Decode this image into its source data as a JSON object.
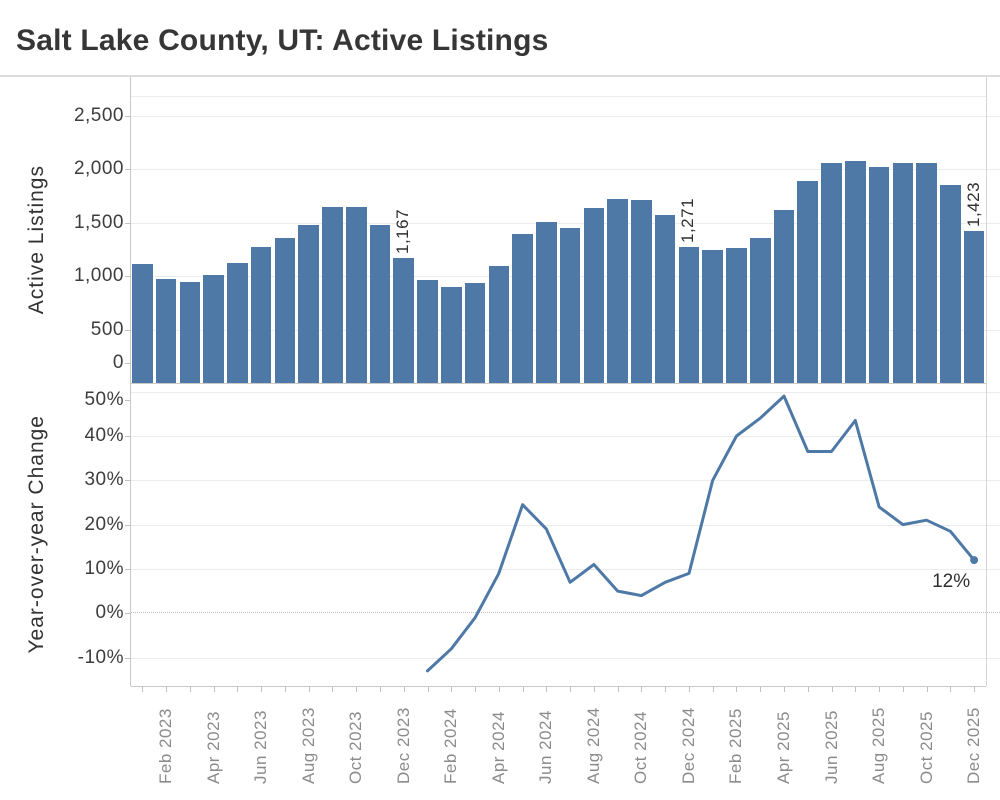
{
  "title": "Salt Lake County, UT: Active Listings",
  "colors": {
    "bar": "#4e79a7",
    "line": "#4e79a7",
    "gridline": "#ececec",
    "axis_line": "#c9c9c9",
    "month_label_text": "#8b8b8b",
    "tick_label_text": "#3d3d3d",
    "title_text": "#363636"
  },
  "x_axis": {
    "tick_labels": [
      "Feb 2023",
      "Apr 2023",
      "Jun 2023",
      "Aug 2023",
      "Oct 2023",
      "Dec 2023",
      "Feb 2024",
      "Apr 2024",
      "Jun 2024",
      "Aug 2024",
      "Oct 2024",
      "Dec 2024",
      "Feb 2025",
      "Apr 2025",
      "Jun 2025",
      "Aug 2025",
      "Oct 2025",
      "Dec 2025"
    ]
  },
  "chart_data": [
    {
      "type": "bar",
      "title": "Active Listings",
      "ylabel": "Active Listings",
      "ylim": [
        0,
        2500
      ],
      "grid": true,
      "legend": false,
      "bar_color": "#4e79a7",
      "ytick_values": [
        0,
        500,
        1000,
        1500,
        2000,
        2500
      ],
      "ytick_labels": [
        "0",
        "500",
        "1,000",
        "1,500",
        "2,000",
        "2,500"
      ],
      "categories": [
        "Jan 2023",
        "Feb 2023",
        "Mar 2023",
        "Apr 2023",
        "May 2023",
        "Jun 2023",
        "Jul 2023",
        "Aug 2023",
        "Sep 2023",
        "Oct 2023",
        "Nov 2023",
        "Dec 2023",
        "Jan 2024",
        "Feb 2024",
        "Mar 2024",
        "Apr 2024",
        "May 2024",
        "Jun 2024",
        "Jul 2024",
        "Aug 2024",
        "Sep 2024",
        "Oct 2024",
        "Nov 2024",
        "Dec 2024",
        "Jan 2025",
        "Feb 2025",
        "Mar 2025",
        "Apr 2025",
        "May 2025",
        "Jun 2025",
        "Jul 2025",
        "Aug 2025",
        "Sep 2025",
        "Oct 2025",
        "Nov 2025",
        "Dec 2025"
      ],
      "values": [
        1108,
        970,
        948,
        1011,
        1117,
        1270,
        1355,
        1474,
        1643,
        1643,
        1477,
        1167,
        964,
        901,
        936,
        1089,
        1390,
        1505,
        1449,
        1637,
        1718,
        1709,
        1568,
        1271,
        1239,
        1265,
        1359,
        1615,
        1890,
        2053,
        2078,
        2016,
        2059,
        2059,
        1850,
        1423
      ],
      "annotations": [
        {
          "category": "Dec 2023",
          "label": "1,167"
        },
        {
          "category": "Dec 2024",
          "label": "1,271"
        },
        {
          "category": "Dec 2025",
          "label": "1,423"
        }
      ]
    },
    {
      "type": "line",
      "title": "Year-over-year Change",
      "ylabel": "Year-over-year Change",
      "ylim": [
        -16,
        52
      ],
      "grid": true,
      "legend": false,
      "zero_line": "dotted",
      "line_color": "#4e79a7",
      "ytick_values": [
        -10,
        0,
        10,
        20,
        30,
        40,
        50
      ],
      "ytick_labels": [
        "-10%",
        "0%",
        "10%",
        "20%",
        "30%",
        "40%",
        "50%"
      ],
      "x": [
        "Jan 2024",
        "Feb 2024",
        "Mar 2024",
        "Apr 2024",
        "May 2024",
        "Jun 2024",
        "Jul 2024",
        "Aug 2024",
        "Sep 2024",
        "Oct 2024",
        "Nov 2024",
        "Dec 2024",
        "Jan 2025",
        "Feb 2025",
        "Mar 2025",
        "Apr 2025",
        "May 2025",
        "Jun 2025",
        "Jul 2025",
        "Aug 2025",
        "Sep 2025",
        "Oct 2025",
        "Nov 2025",
        "Dec 2025"
      ],
      "values": [
        -13,
        -8,
        -1,
        9,
        24.5,
        19,
        7,
        11,
        5,
        4,
        7,
        9,
        30,
        40,
        44,
        49,
        36.5,
        36.5,
        43.5,
        24,
        20,
        21,
        18.5,
        12
      ],
      "annotations": [
        {
          "x": "Dec 2025",
          "label": "12%",
          "marker": "dot"
        }
      ]
    }
  ]
}
